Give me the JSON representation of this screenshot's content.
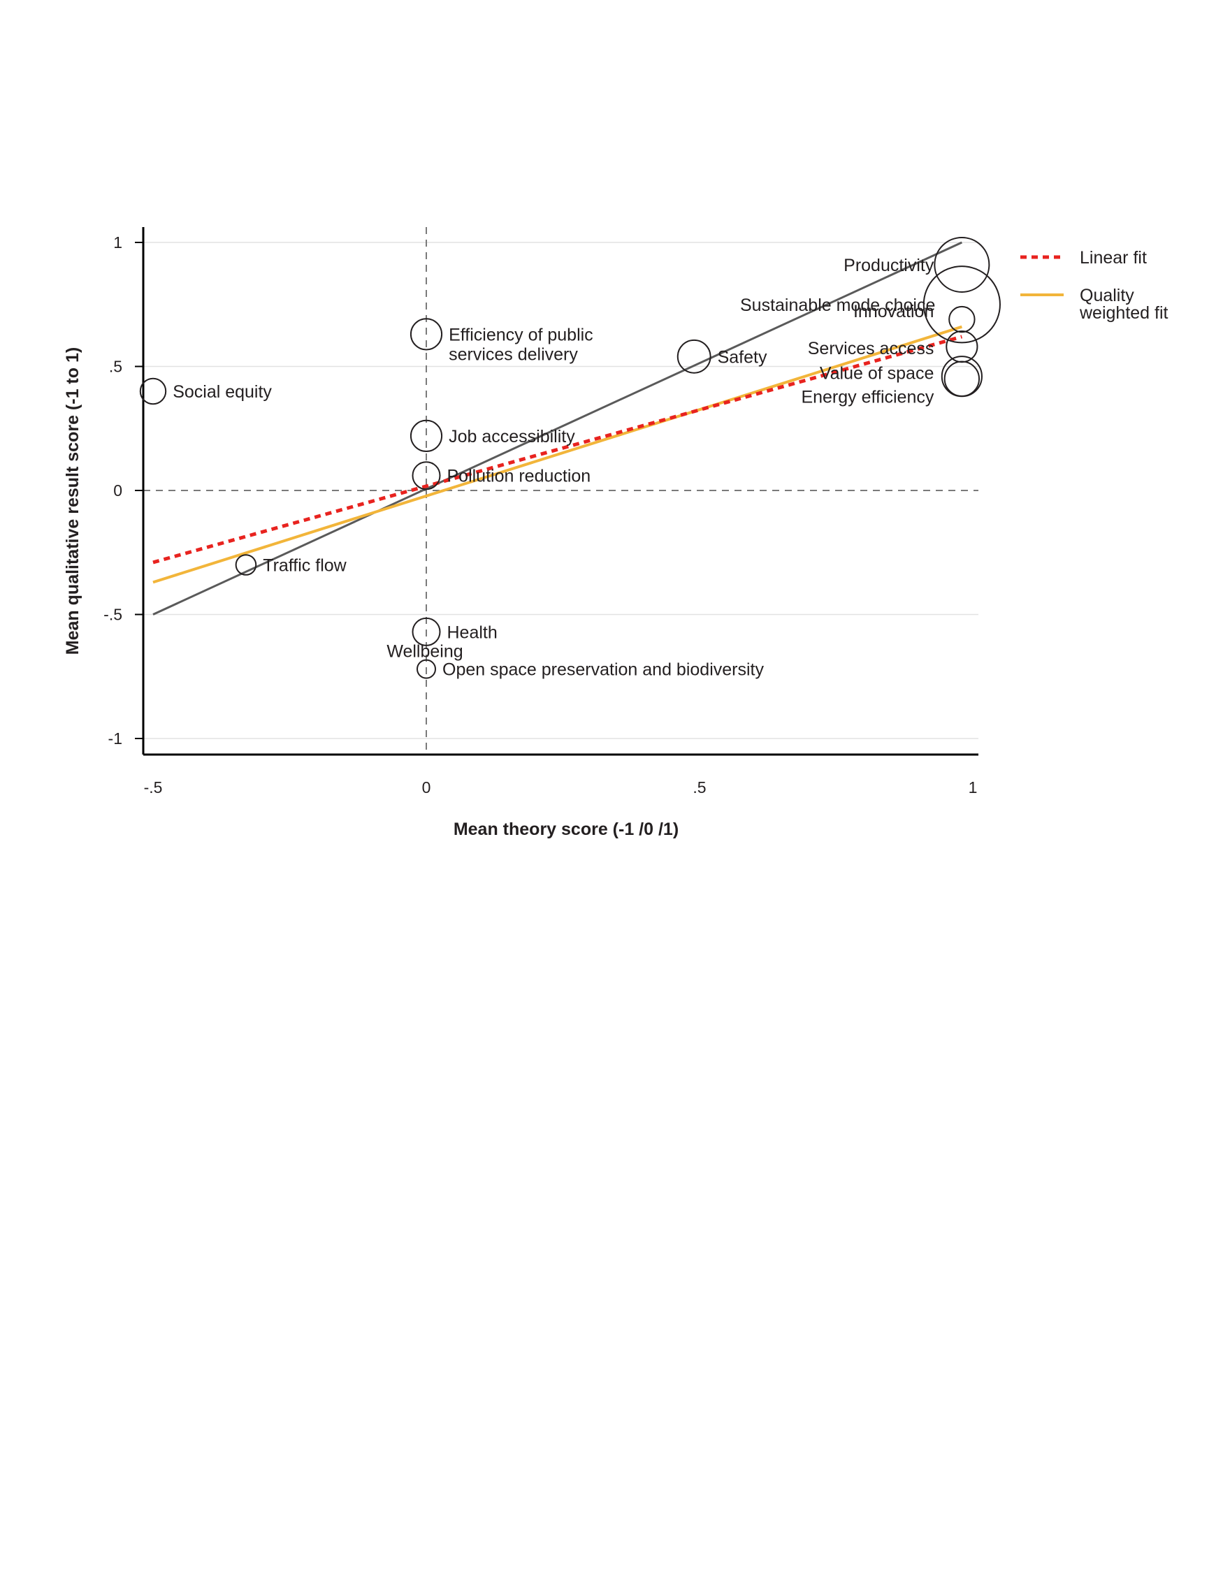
{
  "chart_data": {
    "type": "scatter",
    "title": "",
    "xlabel": "Mean theory score (-1 /0 /1)",
    "ylabel": "Mean qualitative result score (-1 to 1)",
    "xlim": [
      -0.53,
      1.02
    ],
    "ylim": [
      -1.06,
      1.06
    ],
    "x_ticks": [
      {
        "value": -0.5,
        "label": "-.5"
      },
      {
        "value": 0,
        "label": "0"
      },
      {
        "value": 0.5,
        "label": ".5"
      },
      {
        "value": 1,
        "label": "1"
      }
    ],
    "y_ticks": [
      {
        "value": 1,
        "label": "1"
      },
      {
        "value": 0.5,
        "label": ".5"
      },
      {
        "value": 0,
        "label": "0"
      },
      {
        "value": -0.5,
        "label": "-.5"
      },
      {
        "value": -1,
        "label": "-1"
      }
    ],
    "grid": "horizontal",
    "reference_lines": {
      "x": 0,
      "y": 0,
      "style": "dashed"
    },
    "points": [
      {
        "label": "Productivity",
        "x": 0.98,
        "y": 0.91,
        "size": 3.0,
        "label_anchor": "end"
      },
      {
        "label": "Sustainable mode choice",
        "x": 0.98,
        "y": 0.75,
        "size": 4.2,
        "label_anchor": "end"
      },
      {
        "label": "Innovation",
        "x": 0.98,
        "y": 0.69,
        "size": 1.4,
        "label_anchor": "end"
      },
      {
        "label": "Services access",
        "x": 0.98,
        "y": 0.58,
        "size": 1.7,
        "label_anchor": "end"
      },
      {
        "label": "Value of space",
        "x": 0.98,
        "y": 0.46,
        "size": 2.2,
        "label_anchor": "end"
      },
      {
        "label": "Energy efficiency",
        "x": 0.98,
        "y": 0.45,
        "size": 1.9,
        "label_anchor": "end"
      },
      {
        "label": "Safety",
        "x": 0.49,
        "y": 0.54,
        "size": 1.8,
        "label_anchor": "start"
      },
      {
        "label": "Efficiency of public",
        "label2": "services delivery",
        "x": 0.0,
        "y": 0.63,
        "size": 1.7,
        "label_anchor": "start"
      },
      {
        "label": "Social equity",
        "x": -0.5,
        "y": 0.4,
        "size": 1.4,
        "label_anchor": "start"
      },
      {
        "label": "Job accessibility",
        "x": 0.0,
        "y": 0.22,
        "size": 1.7,
        "label_anchor": "start"
      },
      {
        "label": "Pollution reduction",
        "x": 0.0,
        "y": 0.06,
        "size": 1.5,
        "label_anchor": "start"
      },
      {
        "label": "Traffic flow",
        "x": -0.33,
        "y": -0.3,
        "size": 1.1,
        "label_anchor": "start"
      },
      {
        "label": "Health",
        "x": 0.0,
        "y": -0.57,
        "size": 1.5,
        "label_anchor": "start"
      },
      {
        "label": "Wellbeing",
        "x": 0.0,
        "y": -0.57,
        "size": 0,
        "label_anchor": "middle",
        "label_below": true
      },
      {
        "label": "Open space preservation and biodiversity",
        "x": 0.0,
        "y": -0.72,
        "size": 1.0,
        "label_anchor": "start"
      }
    ],
    "series": [
      {
        "name": "Linear fit",
        "style": "dotted",
        "color": "#e8231f",
        "x": [
          -0.5,
          0.98
        ],
        "y": [
          -0.29,
          0.62
        ]
      },
      {
        "name": "Quality weighted fit",
        "style": "solid",
        "color": "#f2b53a",
        "x": [
          -0.5,
          0.98
        ],
        "y": [
          -0.37,
          0.66
        ]
      },
      {
        "name": "",
        "style": "solid",
        "color": "#5a5a5a",
        "x": [
          -0.5,
          0.98
        ],
        "y": [
          -0.5,
          1.0
        ]
      }
    ],
    "legend": {
      "placement": "right",
      "entries": [
        {
          "label": "Linear fit",
          "series": 0
        },
        {
          "label": "Quality",
          "label2": "weighted fit",
          "series": 1
        }
      ]
    }
  }
}
